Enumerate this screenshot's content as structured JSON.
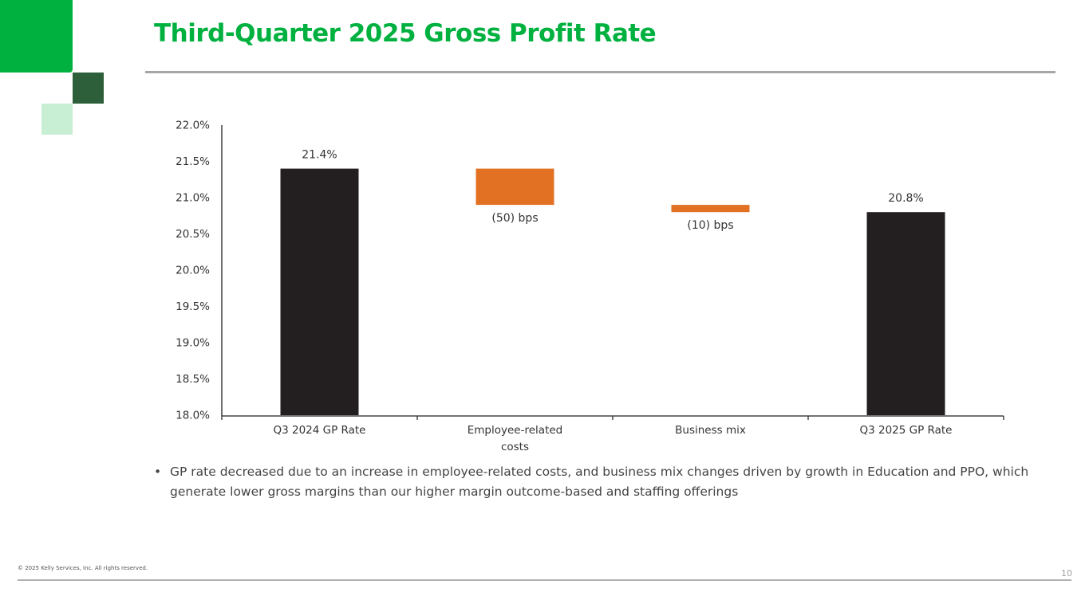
{
  "brand": {
    "green": "#00b140",
    "dark_green": "#2d5f3b",
    "light_green": "#c8eed3",
    "orange": "#e27124",
    "black": "#231f20"
  },
  "slide": {
    "title": "Third-Quarter 2025 Gross Profit Rate",
    "bullets": [
      "GP rate decreased due to an increase in employee-related costs, and business mix changes driven by growth in Education and PPO, which generate lower gross margins than our higher margin outcome-based and staffing offerings"
    ],
    "bullet_char": "•",
    "footer": "© 2025 Kelly Services, Inc. All rights reserved.",
    "page_number": "10"
  },
  "chart_data": {
    "type": "waterfall",
    "title": "",
    "xlabel": "",
    "ylabel": "",
    "ylim": [
      18.0,
      22.0
    ],
    "y_ticks": [
      "22.0%",
      "21.5%",
      "21.0%",
      "20.5%",
      "20.0%",
      "19.5%",
      "19.0%",
      "18.5%",
      "18.0%"
    ],
    "y_tick_values": [
      22.0,
      21.5,
      21.0,
      20.5,
      20.0,
      19.5,
      19.0,
      18.5,
      18.0
    ],
    "grid": false,
    "categories": [
      [
        "Q3 2024 GP Rate"
      ],
      [
        "Employee-related",
        "costs"
      ],
      [
        "Business mix"
      ],
      [
        "Q3 2025 GP Rate"
      ]
    ],
    "steps": [
      {
        "kind": "total",
        "start": 18.0,
        "end": 21.4,
        "label": "21.4%",
        "label_position": "above"
      },
      {
        "kind": "delta",
        "start": 21.4,
        "end": 20.9,
        "label": "(50) bps",
        "label_position": "below"
      },
      {
        "kind": "delta",
        "start": 20.9,
        "end": 20.8,
        "label": "(10) bps",
        "label_position": "below"
      },
      {
        "kind": "total",
        "start": 18.0,
        "end": 20.8,
        "label": "20.8%",
        "label_position": "above"
      }
    ]
  }
}
